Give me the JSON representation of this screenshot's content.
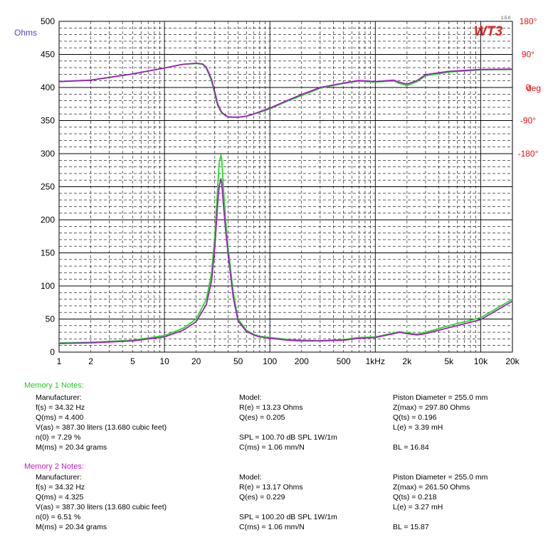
{
  "chart_data": {
    "type": "line",
    "brand": "WT3",
    "version": "1.5.0",
    "y_left_unit": "Ohms",
    "y_right_unit": "deg",
    "x_scale": "log",
    "xlim": [
      1,
      20000
    ],
    "ylim": [
      0,
      500
    ],
    "y_ticks": [
      "0",
      "50",
      "100",
      "150",
      "200",
      "250",
      "300",
      "350",
      "400",
      "450",
      "500"
    ],
    "x_ticks": [
      {
        "value": 1,
        "label": "1"
      },
      {
        "value": 2,
        "label": "2"
      },
      {
        "value": 5,
        "label": "5"
      },
      {
        "value": 10,
        "label": "10"
      },
      {
        "value": 20,
        "label": "20"
      },
      {
        "value": 50,
        "label": "50"
      },
      {
        "value": 100,
        "label": "100"
      },
      {
        "value": 200,
        "label": "200"
      },
      {
        "value": 500,
        "label": "500"
      },
      {
        "value": 1000,
        "label": "1kHz"
      },
      {
        "value": 2000,
        "label": "2k"
      },
      {
        "value": 5000,
        "label": "5k"
      },
      {
        "value": 10000,
        "label": "10k"
      },
      {
        "value": 20000,
        "label": "20k"
      }
    ],
    "phase_ticks": [
      {
        "deg": 180,
        "label": "180°",
        "y": 500
      },
      {
        "deg": 90,
        "label": "90°",
        "y": 450
      },
      {
        "deg": 0,
        "label": "0",
        "y": 400
      },
      {
        "deg": -90,
        "label": "-90°",
        "y": 350
      },
      {
        "deg": -180,
        "label": "-180°",
        "y": 300
      }
    ],
    "grid": true,
    "series": [
      {
        "name": "Memory 1",
        "kind": "impedance",
        "color": "#22dd22",
        "x": [
          1,
          2,
          5,
          10,
          15,
          20,
          25,
          28,
          30,
          32,
          33,
          34.3,
          35,
          36,
          38,
          40,
          45,
          50,
          60,
          70,
          80,
          100,
          150,
          200,
          300,
          500,
          700,
          1000,
          1500,
          1700,
          2000,
          2500,
          3000,
          5000,
          10000,
          20000
        ],
        "y": [
          14,
          15,
          18,
          25,
          36,
          50,
          80,
          120,
          175,
          250,
          285,
          298,
          290,
          255,
          200,
          160,
          90,
          50,
          33,
          27,
          24,
          22,
          19,
          18,
          17,
          19,
          22,
          23,
          29,
          31,
          29,
          27,
          30,
          40,
          52,
          80
        ]
      },
      {
        "name": "Memory 2",
        "kind": "impedance",
        "color": "#a020c0",
        "x": [
          1,
          2,
          5,
          10,
          15,
          20,
          25,
          28,
          30,
          32,
          33,
          34.3,
          35,
          36,
          38,
          40,
          45,
          50,
          60,
          70,
          80,
          100,
          150,
          200,
          300,
          500,
          700,
          1000,
          1500,
          1700,
          2000,
          2500,
          3000,
          5000,
          10000,
          20000
        ],
        "y": [
          13,
          14,
          17,
          23,
          33,
          46,
          72,
          108,
          158,
          225,
          250,
          262,
          255,
          228,
          185,
          150,
          82,
          47,
          31,
          26,
          23,
          21,
          18,
          17,
          17,
          18,
          21,
          22,
          28,
          30,
          28,
          26,
          28,
          37,
          49,
          77
        ]
      },
      {
        "name": "Memory 1",
        "kind": "phase",
        "color": "#22dd22",
        "x": [
          1,
          2,
          5,
          10,
          15,
          20,
          23,
          25,
          28,
          30,
          32,
          35,
          40,
          50,
          60,
          70,
          100,
          150,
          200,
          300,
          500,
          700,
          800,
          1000,
          1500,
          1700,
          2000,
          2500,
          3000,
          5000,
          10000,
          20000
        ],
        "y_deg": [
          16,
          20,
          37,
          53,
          63,
          65,
          63,
          52,
          17,
          -18,
          -50,
          -70,
          -81,
          -81,
          -78,
          -73,
          -58,
          -36,
          -22,
          -2,
          11,
          18,
          16,
          15,
          18,
          11,
          5,
          16,
          32,
          42,
          48,
          49
        ]
      },
      {
        "name": "Memory 2",
        "kind": "phase",
        "color": "#a020c0",
        "x": [
          1,
          2,
          5,
          10,
          15,
          20,
          23,
          25,
          28,
          30,
          32,
          35,
          40,
          50,
          60,
          70,
          100,
          150,
          200,
          300,
          500,
          700,
          800,
          1000,
          1500,
          1700,
          2000,
          2500,
          3000,
          5000,
          10000,
          20000
        ],
        "y_deg": [
          16,
          20,
          37,
          53,
          63,
          66,
          64,
          55,
          22,
          -12,
          -45,
          -68,
          -80,
          -81,
          -78,
          -72,
          -56,
          -34,
          -19,
          0,
          12,
          19,
          18,
          16,
          20,
          14,
          9,
          19,
          35,
          44,
          49,
          50
        ]
      }
    ]
  },
  "notes": [
    {
      "title": "Memory 1 Notes:",
      "color": "#22cc22",
      "rows": [
        [
          "Manufacturer:",
          "Model:",
          "Piston Diameter = 255.0 mm"
        ],
        [
          "f(s) = 34.32 Hz",
          "R(e) = 13.23 Ohms",
          "Z(max) = 297.80 Ohms"
        ],
        [
          "Q(ms) = 4.400",
          "Q(es) = 0.205",
          "Q(ts) = 0.196"
        ],
        [
          "V(as) = 387.30 liters  (13.680 cubic feet)",
          "",
          "L(e) = 3.39 mH"
        ],
        [
          "n(0) = 7.29 %",
          "SPL = 100.70 dB SPL 1W/1m",
          ""
        ],
        [
          "M(ms) = 20.34 grams",
          "C(ms) = 1.06 mm/N",
          "BL = 16.84"
        ]
      ]
    },
    {
      "title": "Memory 2 Notes:",
      "color": "#c020c0",
      "rows": [
        [
          "Manufacturer:",
          "Model:",
          "Piston Diameter = 255.0 mm"
        ],
        [
          "f(s) = 34.32 Hz",
          "R(e) = 13.17 Ohms",
          "Z(max) = 261.50 Ohms"
        ],
        [
          "Q(ms) = 4.325",
          "Q(es) = 0.229",
          "Q(ts) = 0.218"
        ],
        [
          "V(as) = 387.30 liters  (13.680 cubic feet)",
          "",
          "L(e) = 3.27 mH"
        ],
        [
          "n(0) = 6.51 %",
          "SPL = 100.20 dB SPL 1W/1m",
          ""
        ],
        [
          "M(ms) = 20.34 grams",
          "C(ms) = 1.06 mm/N",
          "BL = 15.87"
        ]
      ]
    }
  ]
}
